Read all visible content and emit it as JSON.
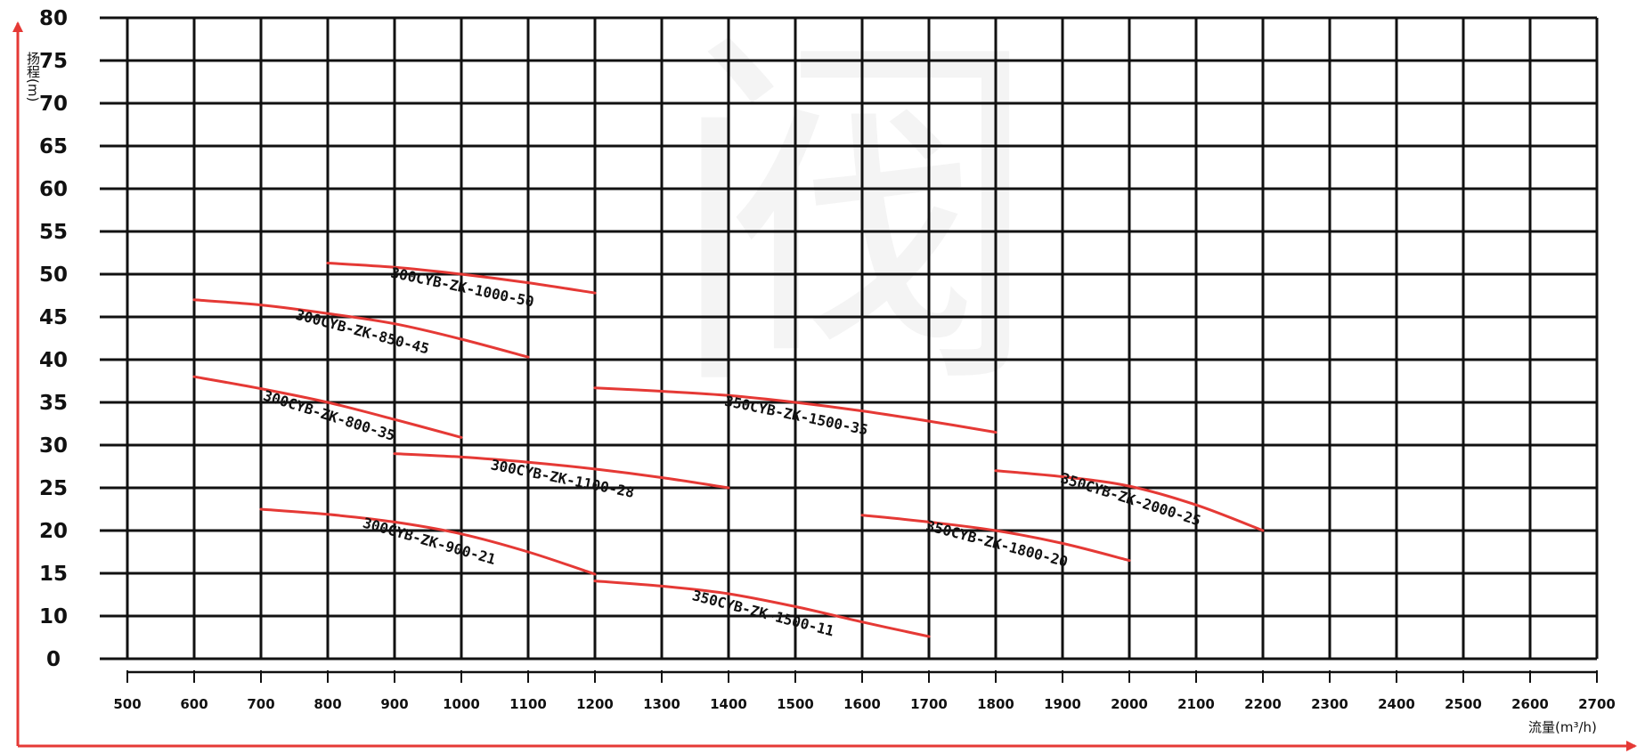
{
  "chart_data": {
    "type": "line",
    "title": "",
    "xlabel": "流量(m³/h)",
    "ylabel": "扬程(m)",
    "xlim": [
      500,
      2700
    ],
    "ylim": [
      0,
      80
    ],
    "x_ticks": [
      500,
      600,
      700,
      800,
      900,
      1000,
      1100,
      1200,
      1300,
      1400,
      1500,
      1600,
      1700,
      1800,
      1900,
      2000,
      2100,
      2200,
      2300,
      2400,
      2500,
      2600,
      2700
    ],
    "y_ticks": [
      0,
      10,
      15,
      20,
      25,
      30,
      35,
      40,
      45,
      50,
      55,
      60,
      65,
      70,
      75,
      80
    ],
    "grid": true,
    "line_color": "#e53935",
    "watermark": "阀",
    "series": [
      {
        "name": "300CYB-ZK-1000-50",
        "x": [
          800,
          900,
          1000,
          1100,
          1200
        ],
        "y": [
          51.3,
          50.8,
          50.0,
          49.0,
          47.8
        ]
      },
      {
        "name": "300CYB-ZK-850-45",
        "x": [
          600,
          700,
          800,
          900,
          1000,
          1100
        ],
        "y": [
          47.0,
          46.4,
          45.4,
          44.2,
          42.4,
          40.3
        ]
      },
      {
        "name": "300CYB-ZK-800-35",
        "x": [
          600,
          700,
          800,
          900,
          1000
        ],
        "y": [
          38.0,
          36.6,
          35.0,
          33.0,
          30.9
        ]
      },
      {
        "name": "350CYB-ZK-1500-35",
        "x": [
          1200,
          1300,
          1400,
          1500,
          1600,
          1700,
          1800
        ],
        "y": [
          36.7,
          36.3,
          35.8,
          35.0,
          34.0,
          32.8,
          31.5
        ]
      },
      {
        "name": "300CYB-ZK-1100-28",
        "x": [
          900,
          1000,
          1100,
          1200,
          1300,
          1400
        ],
        "y": [
          29.0,
          28.6,
          28.0,
          27.2,
          26.2,
          25.0
        ]
      },
      {
        "name": "350CYB-ZK-2000-25",
        "x": [
          1800,
          1900,
          2000,
          2100,
          2200
        ],
        "y": [
          27.0,
          26.3,
          25.2,
          23.0,
          20.0
        ]
      },
      {
        "name": "300CYB-ZK-900-21",
        "x": [
          700,
          800,
          900,
          1000,
          1100,
          1200
        ],
        "y": [
          22.5,
          21.9,
          21.0,
          19.6,
          17.5,
          14.9
        ]
      },
      {
        "name": "350CYB-ZK-1800-20",
        "x": [
          1600,
          1700,
          1800,
          1900,
          2000
        ],
        "y": [
          21.8,
          21.0,
          20.0,
          18.5,
          16.5
        ]
      },
      {
        "name": "350CYB-ZK-1500-11",
        "x": [
          1200,
          1300,
          1400,
          1500,
          1600,
          1700
        ],
        "y": [
          14.1,
          13.5,
          12.6,
          11.1,
          8.6,
          5.2
        ]
      }
    ]
  }
}
